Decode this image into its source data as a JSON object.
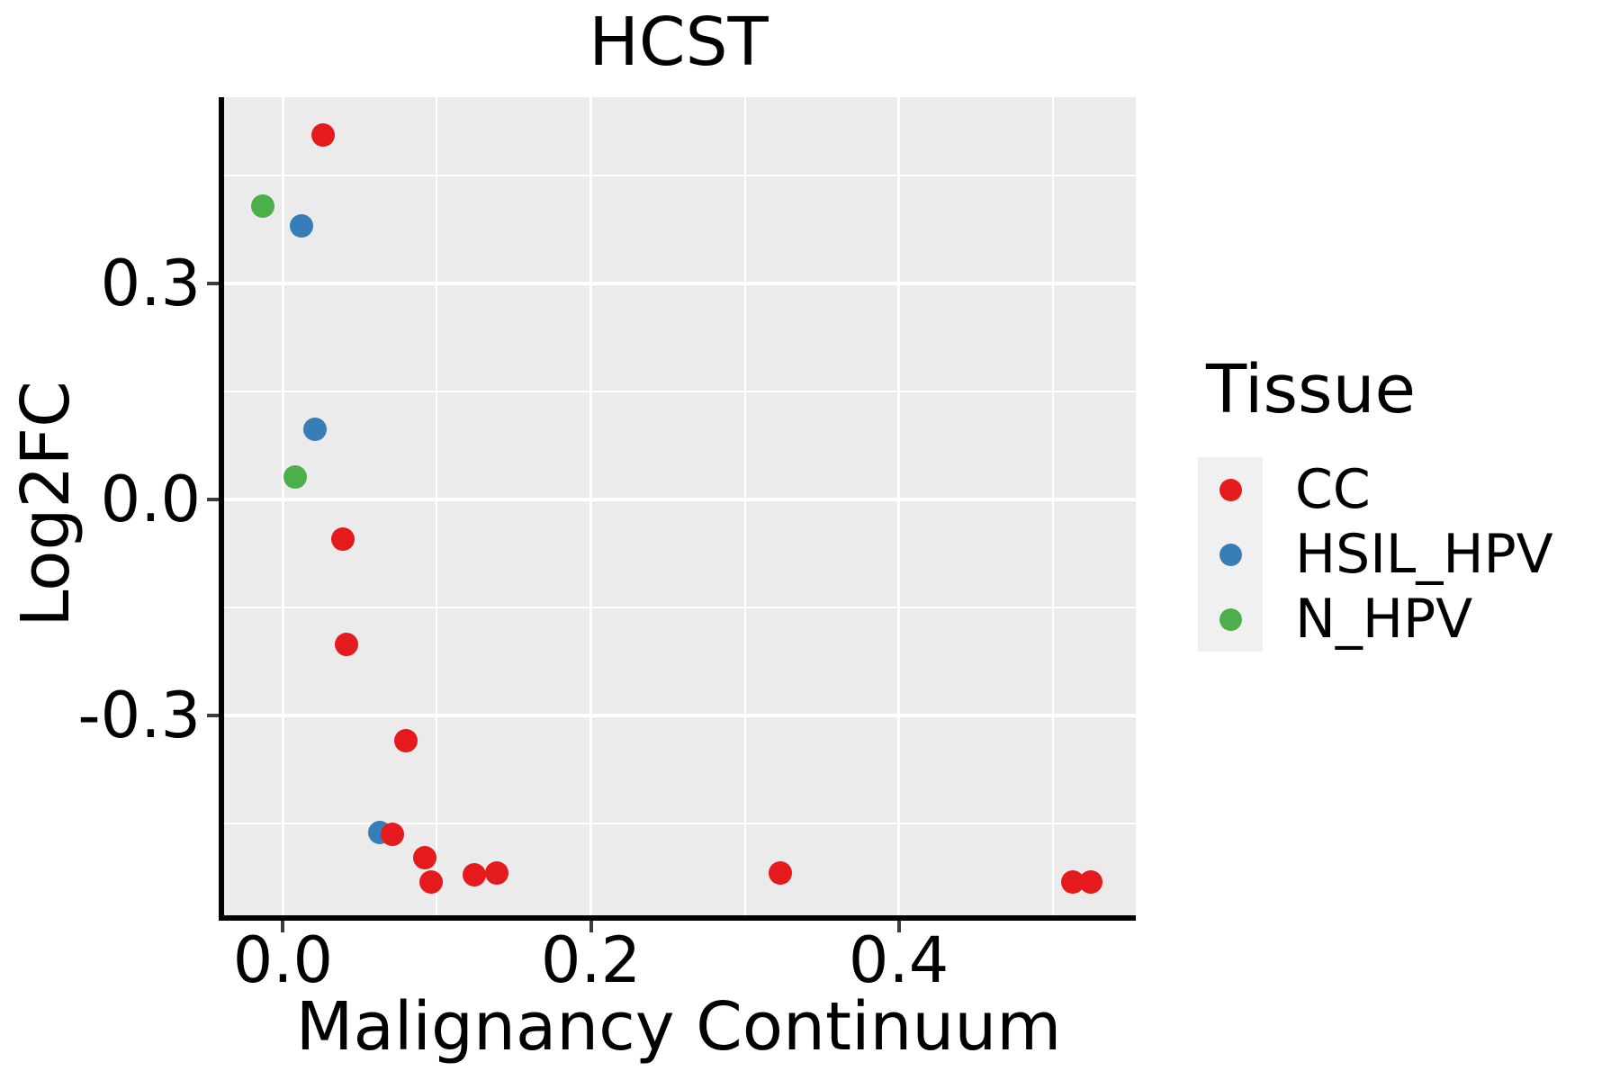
{
  "chart_data": {
    "type": "scatter",
    "title": "HCST",
    "xlabel": "Malignancy Continuum",
    "ylabel": "Log2FC",
    "legend_title": "Tissue",
    "legend_position": "right",
    "grid": true,
    "background_color": "#EBEBEB",
    "gridline_color": "#FFFFFF",
    "xlim": [
      -0.04,
      0.554
    ],
    "ylim": [
      -0.579,
      0.559
    ],
    "x_major_ticks": [
      0.0,
      0.2,
      0.4
    ],
    "x_tick_labels": [
      "0.0",
      "0.2",
      "0.4"
    ],
    "x_minor_ticks": [
      0.1,
      0.3,
      0.5
    ],
    "y_major_ticks": [
      0.3,
      0.0,
      -0.3
    ],
    "y_tick_labels": [
      "0.3",
      "0.0",
      "-0.3"
    ],
    "y_minor_ticks": [
      0.45,
      0.15,
      -0.15,
      -0.45
    ],
    "series": [
      {
        "name": "CC",
        "color": "#E41A1C",
        "points": [
          [
            0.026,
            0.506
          ],
          [
            0.039,
            -0.055
          ],
          [
            0.041,
            -0.201
          ],
          [
            0.08,
            -0.335
          ],
          [
            0.071,
            -0.465
          ],
          [
            0.092,
            -0.498
          ],
          [
            0.096,
            -0.532
          ],
          [
            0.124,
            -0.521
          ],
          [
            0.139,
            -0.519
          ],
          [
            0.323,
            -0.519
          ],
          [
            0.513,
            -0.531
          ],
          [
            0.525,
            -0.531
          ]
        ]
      },
      {
        "name": "HSIL_HPV",
        "color": "#377EB8",
        "points": [
          [
            0.012,
            0.38
          ],
          [
            0.021,
            0.098
          ],
          [
            0.063,
            -0.463
          ]
        ]
      },
      {
        "name": "N_HPV",
        "color": "#4DAF4A",
        "points": [
          [
            -0.013,
            0.408
          ],
          [
            0.008,
            0.031
          ]
        ]
      }
    ]
  }
}
